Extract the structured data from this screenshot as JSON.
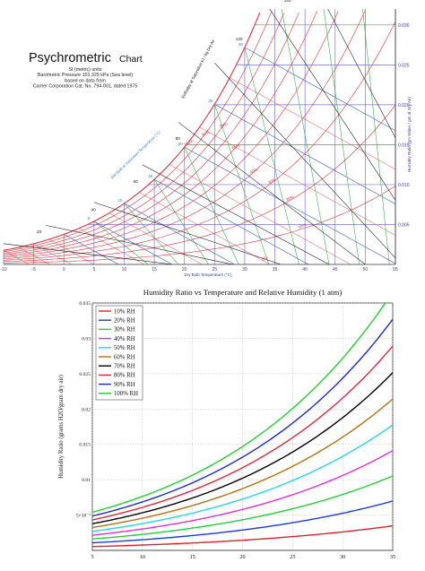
{
  "psychro": {
    "title_main": "Psychrometric",
    "title_sub": "Chart",
    "info_lines": [
      "SI (metric) units",
      "Barometric Pressure 101.325 kPa (Sea level)",
      "based on data from",
      "Carrier Corporation Cat. No. 794-001, dated 1975"
    ],
    "xlabel": "Dry Bulb Temperature (°C)",
    "ylabel": "Humidity Ratio (gm Water / gm of Dry Air)",
    "enthalpy_label": "Enthalpy at Saturation kJ / kg Dry Air",
    "wetbulb_label": "Wet Bulb or Saturation Temperature (°C)",
    "x_ticks": [
      "-10",
      "-5",
      "0",
      "5",
      "10",
      "15",
      "20",
      "25",
      "30",
      "35",
      "40",
      "45",
      "50",
      "55"
    ],
    "y_ticks": [
      {
        "value": 0.005,
        "label": "0.005"
      },
      {
        "value": 0.01,
        "label": "0.010"
      },
      {
        "value": 0.015,
        "label": "0.015"
      },
      {
        "value": 0.02,
        "label": "0.020"
      },
      {
        "value": 0.025,
        "label": "0.025"
      },
      {
        "value": 0.03,
        "label": "0.030"
      }
    ],
    "rh_labels": [
      {
        "rh": 100,
        "label": "100%"
      },
      {
        "rh": 90,
        "label": "90%"
      },
      {
        "rh": 80,
        "label": "80%"
      },
      {
        "rh": 60,
        "label": "60%"
      },
      {
        "rh": 40,
        "label": "40%"
      },
      {
        "rh": 30,
        "label": "30%"
      },
      {
        "rh": 20,
        "label": "20%"
      },
      {
        "rh": 10,
        "label": "10%"
      },
      {
        "rh": 0,
        "label": "0%"
      }
    ],
    "enthalpy_ticks": [
      "0",
      "20",
      "40",
      "60",
      "80",
      "120",
      "140"
    ],
    "wetbulb_ticks": [
      "5",
      "10",
      "15",
      "20",
      "25",
      "30"
    ],
    "colors": {
      "rh": "#e0303a",
      "wetbulb": "#3a78c8",
      "volume": "#2aa84a",
      "enthalpy": "#111111",
      "grid": "#7777cc"
    }
  },
  "chart_data": [
    {
      "type": "line",
      "title": "Humidity Ratio vs Temperature and Relative Humidity (1 atm)",
      "xlabel": "",
      "ylabel": "Humidity Ratio (grams H2O/gram dry air)",
      "xlim": [
        5,
        35
      ],
      "ylim": [
        0,
        0.035
      ],
      "x_ticks": [
        5,
        10,
        15,
        20,
        25,
        30,
        35
      ],
      "y_ticks": [
        {
          "value": 0.005,
          "label": "5×10⁻³"
        },
        {
          "value": 0.01,
          "label": "0.01"
        },
        {
          "value": 0.015,
          "label": "0.015"
        },
        {
          "value": 0.02,
          "label": "0.02"
        },
        {
          "value": 0.025,
          "label": "0.025"
        },
        {
          "value": 0.03,
          "label": "0.03"
        },
        {
          "value": 0.035,
          "label": "0.035"
        }
      ],
      "pressure_kpa": 101.325,
      "legend_position": "top-left",
      "series": [
        {
          "name": "10% RH",
          "rh": 0.1,
          "color": "#e0202a"
        },
        {
          "name": "20% RH",
          "rh": 0.2,
          "color": "#1a3ad8"
        },
        {
          "name": "30% RH",
          "rh": 0.3,
          "color": "#22d038"
        },
        {
          "name": "40% RH",
          "rh": 0.4,
          "color": "#e030d8"
        },
        {
          "name": "50% RH",
          "rh": 0.5,
          "color": "#20d8e8"
        },
        {
          "name": "60% RH",
          "rh": 0.6,
          "color": "#b87010"
        },
        {
          "name": "70% RH",
          "rh": 0.7,
          "color": "#000000"
        },
        {
          "name": "80% RH",
          "rh": 0.8,
          "color": "#e0283a"
        },
        {
          "name": "90% RH",
          "rh": 0.9,
          "color": "#1a2ad0"
        },
        {
          "name": "100% RH",
          "rh": 1.0,
          "color": "#20d030"
        }
      ]
    }
  ]
}
